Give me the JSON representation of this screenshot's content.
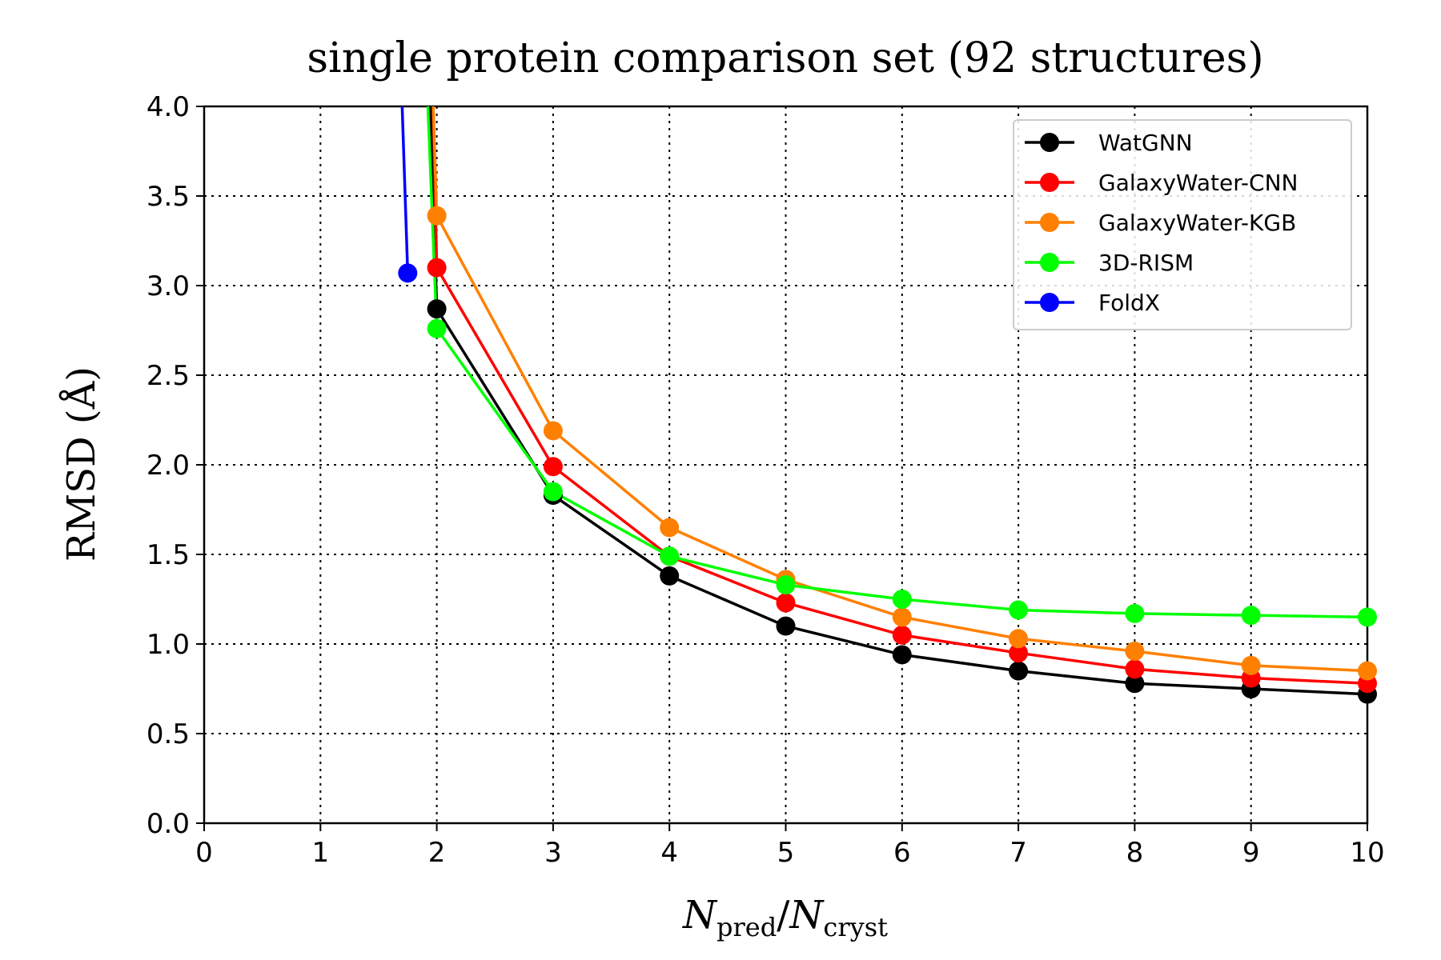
{
  "chart_data": {
    "type": "line",
    "title": "single protein comparison set (92 structures)",
    "xlabel": {
      "main": "N",
      "sub1": "pred",
      "sep": "/",
      "main2": "N",
      "sub2": "cryst"
    },
    "ylabel": "RMSD (Å)",
    "xlim": [
      0,
      10
    ],
    "ylim": [
      0,
      4.0
    ],
    "xticks": [
      "0",
      "1",
      "2",
      "3",
      "4",
      "5",
      "6",
      "7",
      "8",
      "9",
      "10"
    ],
    "yticks": [
      "0.0",
      "0.5",
      "1.0",
      "1.5",
      "2.0",
      "2.5",
      "3.0",
      "3.5",
      "4.0"
    ],
    "grid": true,
    "legend_position": "top-right",
    "series": [
      {
        "name": "WatGNN",
        "color": "#000000",
        "x": [
          1.85,
          2,
          3,
          4,
          5,
          6,
          7,
          8,
          9,
          10
        ],
        "y": [
          6.0,
          2.87,
          1.83,
          1.38,
          1.1,
          0.94,
          0.85,
          0.78,
          0.75,
          0.72
        ]
      },
      {
        "name": "GalaxyWater-CNN",
        "color": "#ff0000",
        "x": [
          1.9,
          2,
          3,
          4,
          5,
          6,
          7,
          8,
          9,
          10
        ],
        "y": [
          6.0,
          3.1,
          1.99,
          1.49,
          1.23,
          1.05,
          0.95,
          0.86,
          0.81,
          0.78
        ]
      },
      {
        "name": "GalaxyWater-KGB",
        "color": "#ff8000",
        "x": [
          1.87,
          2,
          3,
          4,
          5,
          6,
          7,
          8,
          9,
          10
        ],
        "y": [
          6.0,
          3.39,
          2.19,
          1.65,
          1.36,
          1.15,
          1.03,
          0.96,
          0.88,
          0.85
        ]
      },
      {
        "name": "3D-RISM",
        "color": "#00ff00",
        "x": [
          1.8,
          2,
          3,
          4,
          5,
          6,
          7,
          8,
          9,
          10
        ],
        "y": [
          6.0,
          2.76,
          1.85,
          1.49,
          1.33,
          1.25,
          1.19,
          1.17,
          1.16,
          1.15
        ]
      },
      {
        "name": "FoldX",
        "color": "#0000ff",
        "x": [
          1.6,
          1.75
        ],
        "y": [
          6.0,
          3.07
        ]
      }
    ]
  }
}
